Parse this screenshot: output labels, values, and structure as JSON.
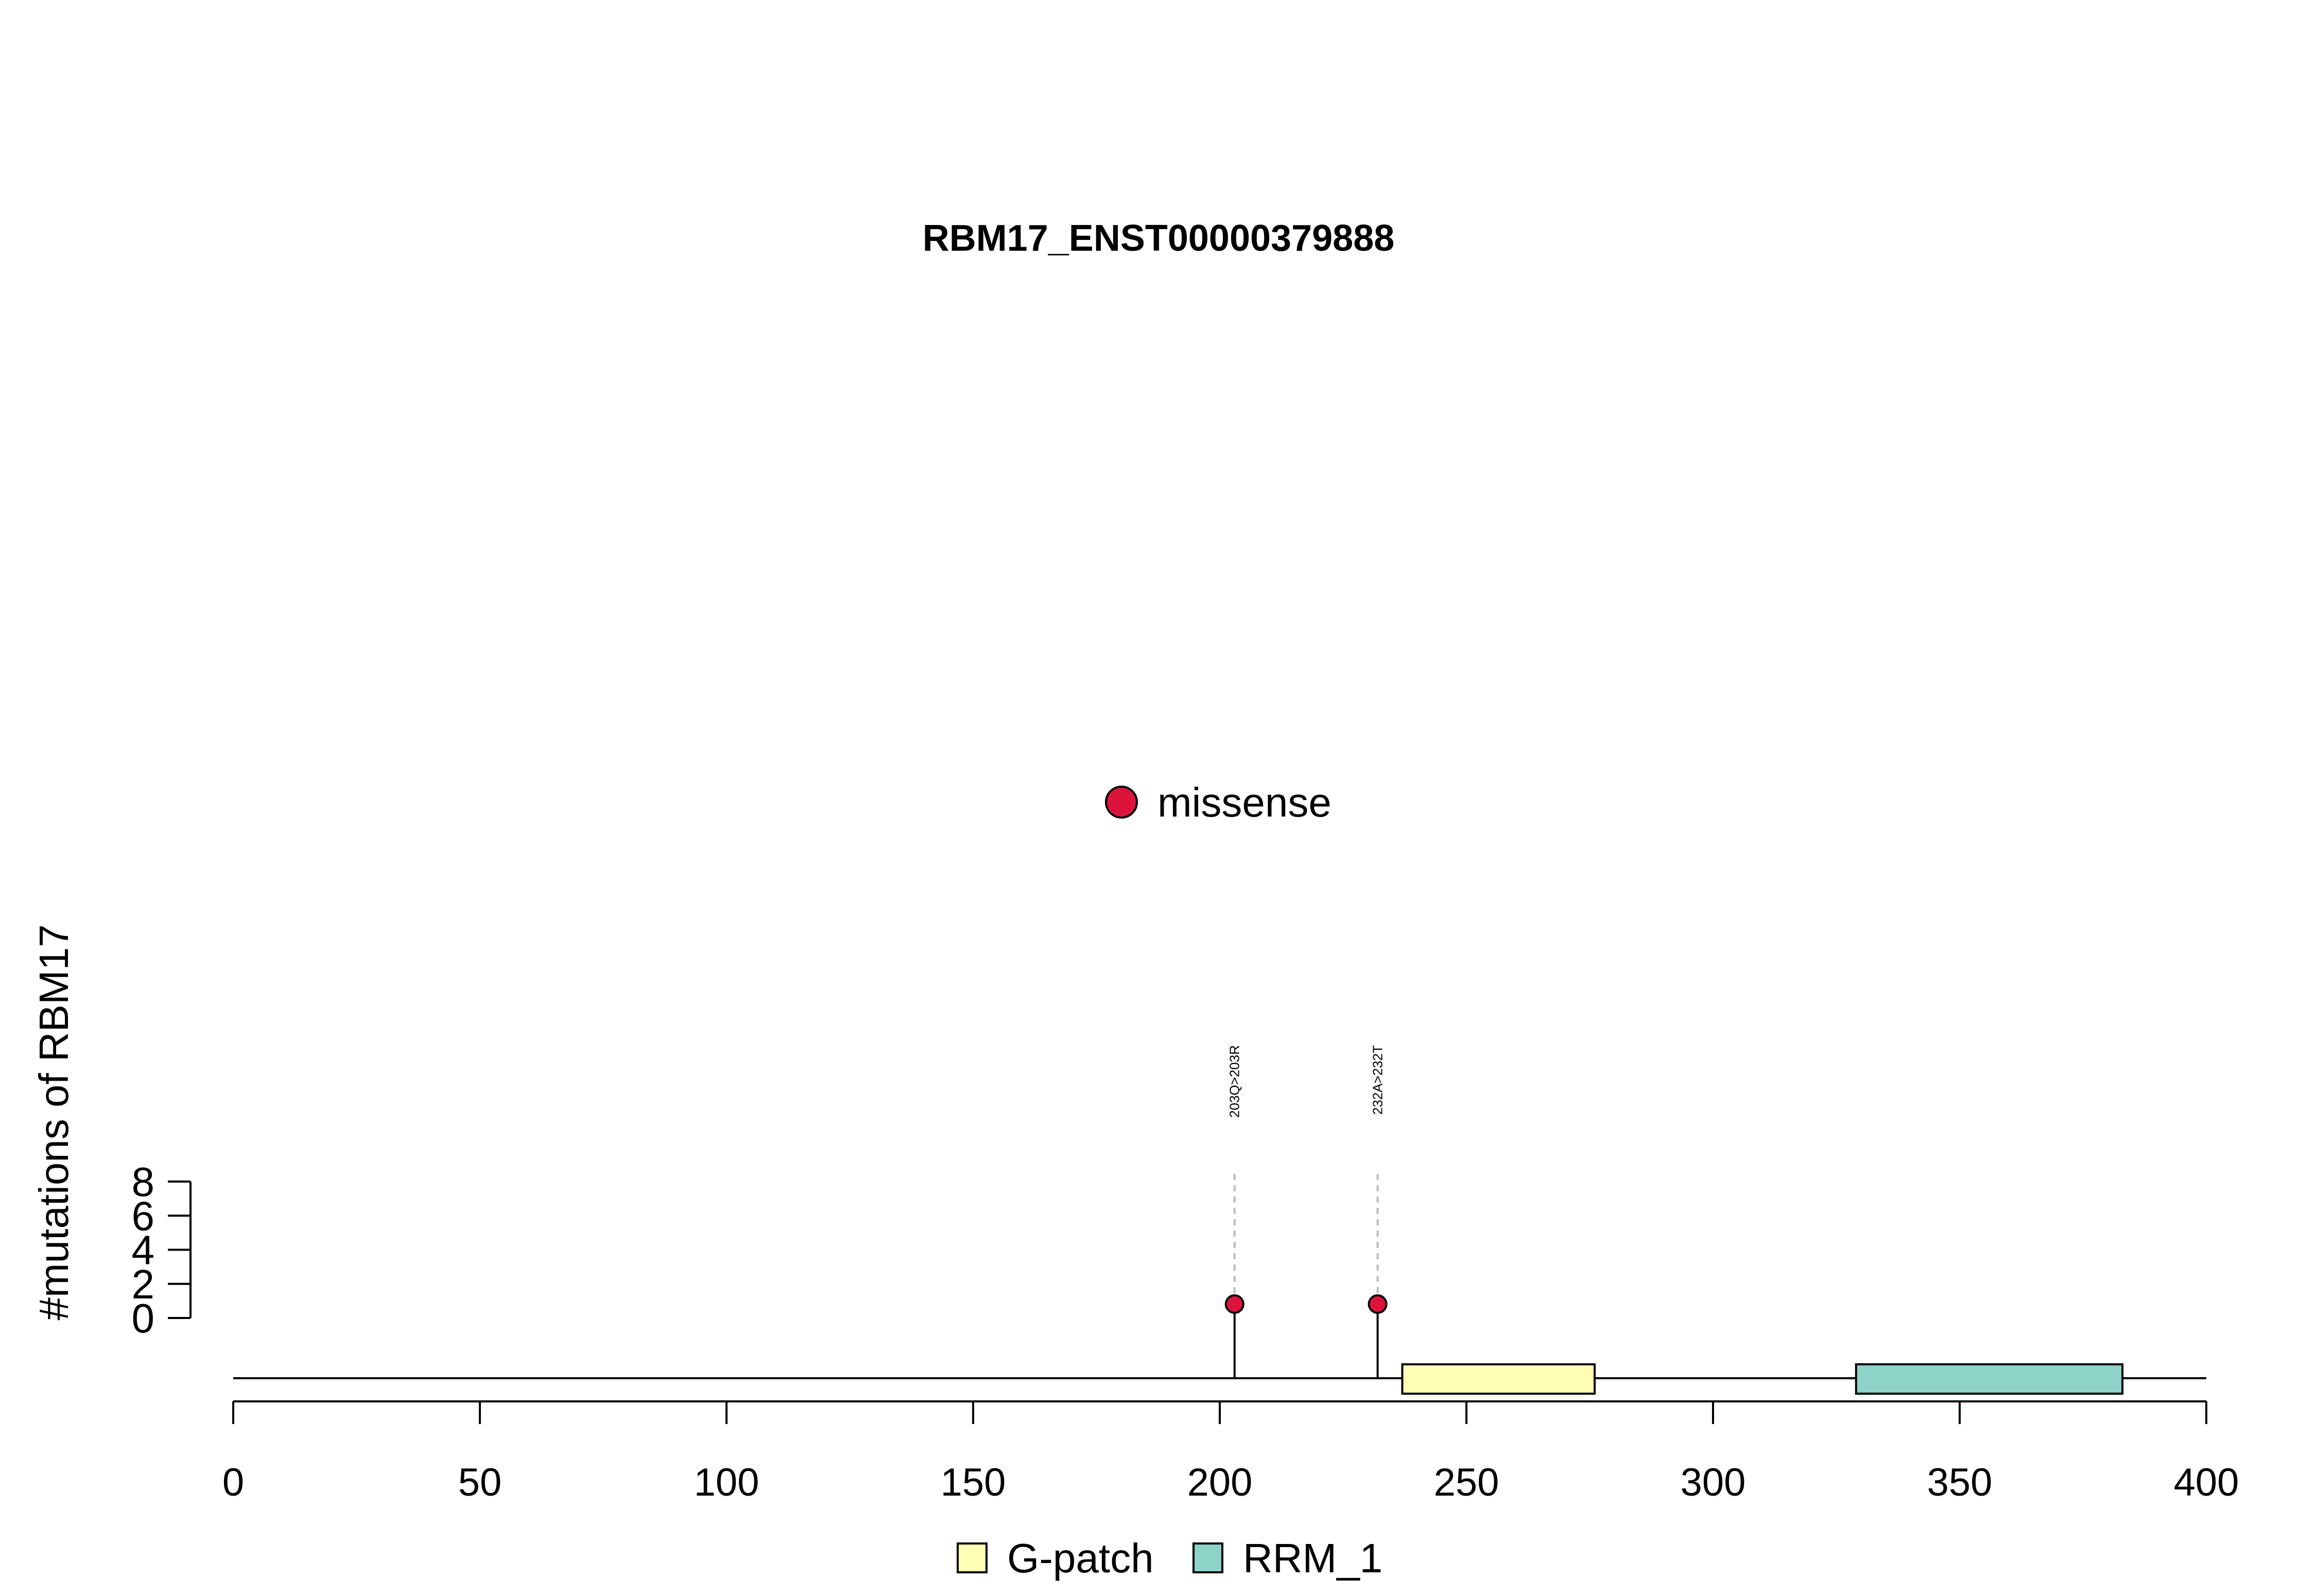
{
  "chart_data": {
    "type": "lollipop",
    "title": "RBM17_ENST00000379888",
    "ylabel": "#mutations of RBM17",
    "xlim": [
      0,
      400
    ],
    "x_ticks": [
      0,
      50,
      100,
      150,
      200,
      250,
      300,
      350,
      400
    ],
    "x_tick_labels": [
      "0",
      "50",
      "100",
      "150",
      "200",
      "250",
      "300",
      "350",
      "400"
    ],
    "ylim": [
      0,
      8
    ],
    "y_ticks": [
      0,
      2,
      4,
      6,
      8
    ],
    "y_tick_labels": [
      "0",
      "2",
      "4",
      "6",
      "8"
    ],
    "mutation_legend": [
      {
        "label": "missense",
        "color": "#DC143C"
      }
    ],
    "mutations": [
      {
        "position": 203,
        "count": 1,
        "type": "missense",
        "label": "203Q>203R"
      },
      {
        "position": 232,
        "count": 1,
        "type": "missense",
        "label": "232A>232T"
      }
    ],
    "domains": [
      {
        "name": "G-patch",
        "start": 237,
        "end": 276,
        "color": "#FFFFB3"
      },
      {
        "name": "RRM_1",
        "start": 329,
        "end": 383,
        "color": "#8DD3C7"
      }
    ],
    "domain_legend": [
      {
        "label": "G-patch",
        "color": "#FFFFB3"
      },
      {
        "label": "RRM_1",
        "color": "#8DD3C7"
      }
    ]
  }
}
